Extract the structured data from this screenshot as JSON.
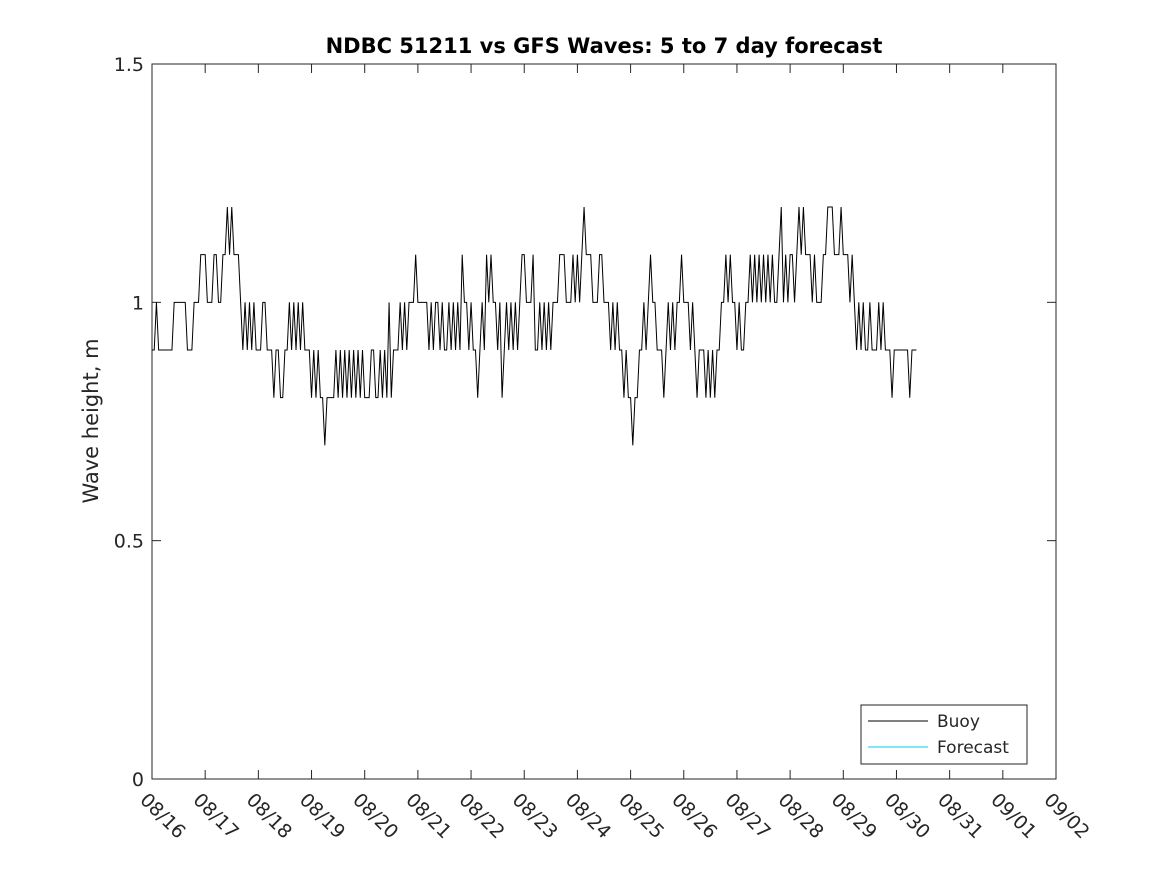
{
  "chart_data": {
    "type": "line",
    "title": "NDBC 51211 vs GFS Waves: 5 to 7 day forecast",
    "xlabel": "",
    "ylabel": "Wave height, m",
    "ylim": [
      0,
      1.5
    ],
    "yticks": [
      0,
      0.5,
      1,
      1.5
    ],
    "ytick_labels": [
      "0",
      "0.5",
      "1",
      "1.5"
    ],
    "xlim_days": [
      0,
      17
    ],
    "xtick_labels": [
      "08/16",
      "08/17",
      "08/18",
      "08/19",
      "08/20",
      "08/21",
      "08/22",
      "08/23",
      "08/24",
      "08/25",
      "08/26",
      "08/27",
      "08/28",
      "08/29",
      "08/30",
      "08/31",
      "09/01",
      "09/02"
    ],
    "legend_position": "bottom-right",
    "series": [
      {
        "name": "Buoy",
        "color": "#000000",
        "x_start_day": 0,
        "x_step_hours": 1,
        "values": [
          0.9,
          0.9,
          1.0,
          0.9,
          0.9,
          0.9,
          0.9,
          0.9,
          0.9,
          0.9,
          1.0,
          1.0,
          1.0,
          1.0,
          1.0,
          1.0,
          0.9,
          0.9,
          0.9,
          1.0,
          1.0,
          1.0,
          1.1,
          1.1,
          1.1,
          1.0,
          1.0,
          1.0,
          1.1,
          1.1,
          1.0,
          1.0,
          1.1,
          1.1,
          1.2,
          1.1,
          1.2,
          1.1,
          1.1,
          1.1,
          1.0,
          0.9,
          1.0,
          0.9,
          1.0,
          0.9,
          1.0,
          0.9,
          0.9,
          0.9,
          1.0,
          1.0,
          0.9,
          0.9,
          0.9,
          0.8,
          0.9,
          0.9,
          0.8,
          0.8,
          0.9,
          0.9,
          1.0,
          0.9,
          1.0,
          0.9,
          1.0,
          0.9,
          1.0,
          0.9,
          0.9,
          0.9,
          0.8,
          0.9,
          0.8,
          0.9,
          0.8,
          0.8,
          0.7,
          0.8,
          0.8,
          0.8,
          0.8,
          0.9,
          0.8,
          0.9,
          0.8,
          0.9,
          0.8,
          0.9,
          0.8,
          0.9,
          0.8,
          0.9,
          0.8,
          0.9,
          0.8,
          0.8,
          0.8,
          0.9,
          0.9,
          0.8,
          0.8,
          0.9,
          0.8,
          0.9,
          0.8,
          1.0,
          0.8,
          0.9,
          0.9,
          0.9,
          1.0,
          0.9,
          1.0,
          0.9,
          1.0,
          1.0,
          1.0,
          1.1,
          1.0,
          1.0,
          1.0,
          1.0,
          1.0,
          0.9,
          1.0,
          0.9,
          1.0,
          1.0,
          0.9,
          1.0,
          0.9,
          0.9,
          1.0,
          0.9,
          1.0,
          0.9,
          1.0,
          0.9,
          1.1,
          1.0,
          1.0,
          0.9,
          1.0,
          0.9,
          0.9,
          0.8,
          0.9,
          1.0,
          0.9,
          1.1,
          1.0,
          1.1,
          1.0,
          1.0,
          0.9,
          1.0,
          0.8,
          0.9,
          1.0,
          0.9,
          1.0,
          0.9,
          1.0,
          0.9,
          1.0,
          1.1,
          1.1,
          1.0,
          1.0,
          1.0,
          1.1,
          0.9,
          0.9,
          1.0,
          0.9,
          1.0,
          0.9,
          1.0,
          0.9,
          1.0,
          1.0,
          1.0,
          1.1,
          1.1,
          1.1,
          1.0,
          1.0,
          1.0,
          1.1,
          1.0,
          1.1,
          1.0,
          1.1,
          1.2,
          1.1,
          1.1,
          1.1,
          1.0,
          1.0,
          1.0,
          1.1,
          1.1,
          1.0,
          1.0,
          1.0,
          0.9,
          1.0,
          0.9,
          1.0,
          0.9,
          0.9,
          0.8,
          0.9,
          0.8,
          0.8,
          0.7,
          0.8,
          0.8,
          0.9,
          0.9,
          1.0,
          0.9,
          1.0,
          1.1,
          1.0,
          1.0,
          0.9,
          0.9,
          0.9,
          0.8,
          0.9,
          1.0,
          0.9,
          1.0,
          0.9,
          1.0,
          1.0,
          1.1,
          1.0,
          1.0,
          1.0,
          0.9,
          1.0,
          0.9,
          0.8,
          0.9,
          0.9,
          0.9,
          0.8,
          0.9,
          0.8,
          0.9,
          0.8,
          0.9,
          0.9,
          1.0,
          1.0,
          1.1,
          1.0,
          1.1,
          1.0,
          1.0,
          0.9,
          1.0,
          0.9,
          0.9,
          1.0,
          1.0,
          1.1,
          1.0,
          1.1,
          1.0,
          1.1,
          1.0,
          1.1,
          1.0,
          1.1,
          1.0,
          1.1,
          1.0,
          1.0,
          1.1,
          1.2,
          1.0,
          1.1,
          1.0,
          1.1,
          1.1,
          1.0,
          1.1,
          1.2,
          1.1,
          1.2,
          1.1,
          1.1,
          1.1,
          1.0,
          1.1,
          1.0,
          1.0,
          1.0,
          1.1,
          1.1,
          1.2,
          1.2,
          1.2,
          1.1,
          1.1,
          1.1,
          1.2,
          1.1,
          1.1,
          1.1,
          1.0,
          1.1,
          1.0,
          0.9,
          1.0,
          0.9,
          1.0,
          0.9,
          0.9,
          1.0,
          0.9,
          0.9,
          0.9,
          1.0,
          0.9,
          1.0,
          0.9,
          0.9,
          0.9,
          0.8,
          0.9,
          0.9,
          0.9,
          0.9,
          0.9,
          0.9,
          0.9,
          0.8,
          0.9,
          0.9,
          0.9
        ]
      },
      {
        "name": "Forecast",
        "color": "#00cfe8",
        "values": []
      }
    ]
  }
}
